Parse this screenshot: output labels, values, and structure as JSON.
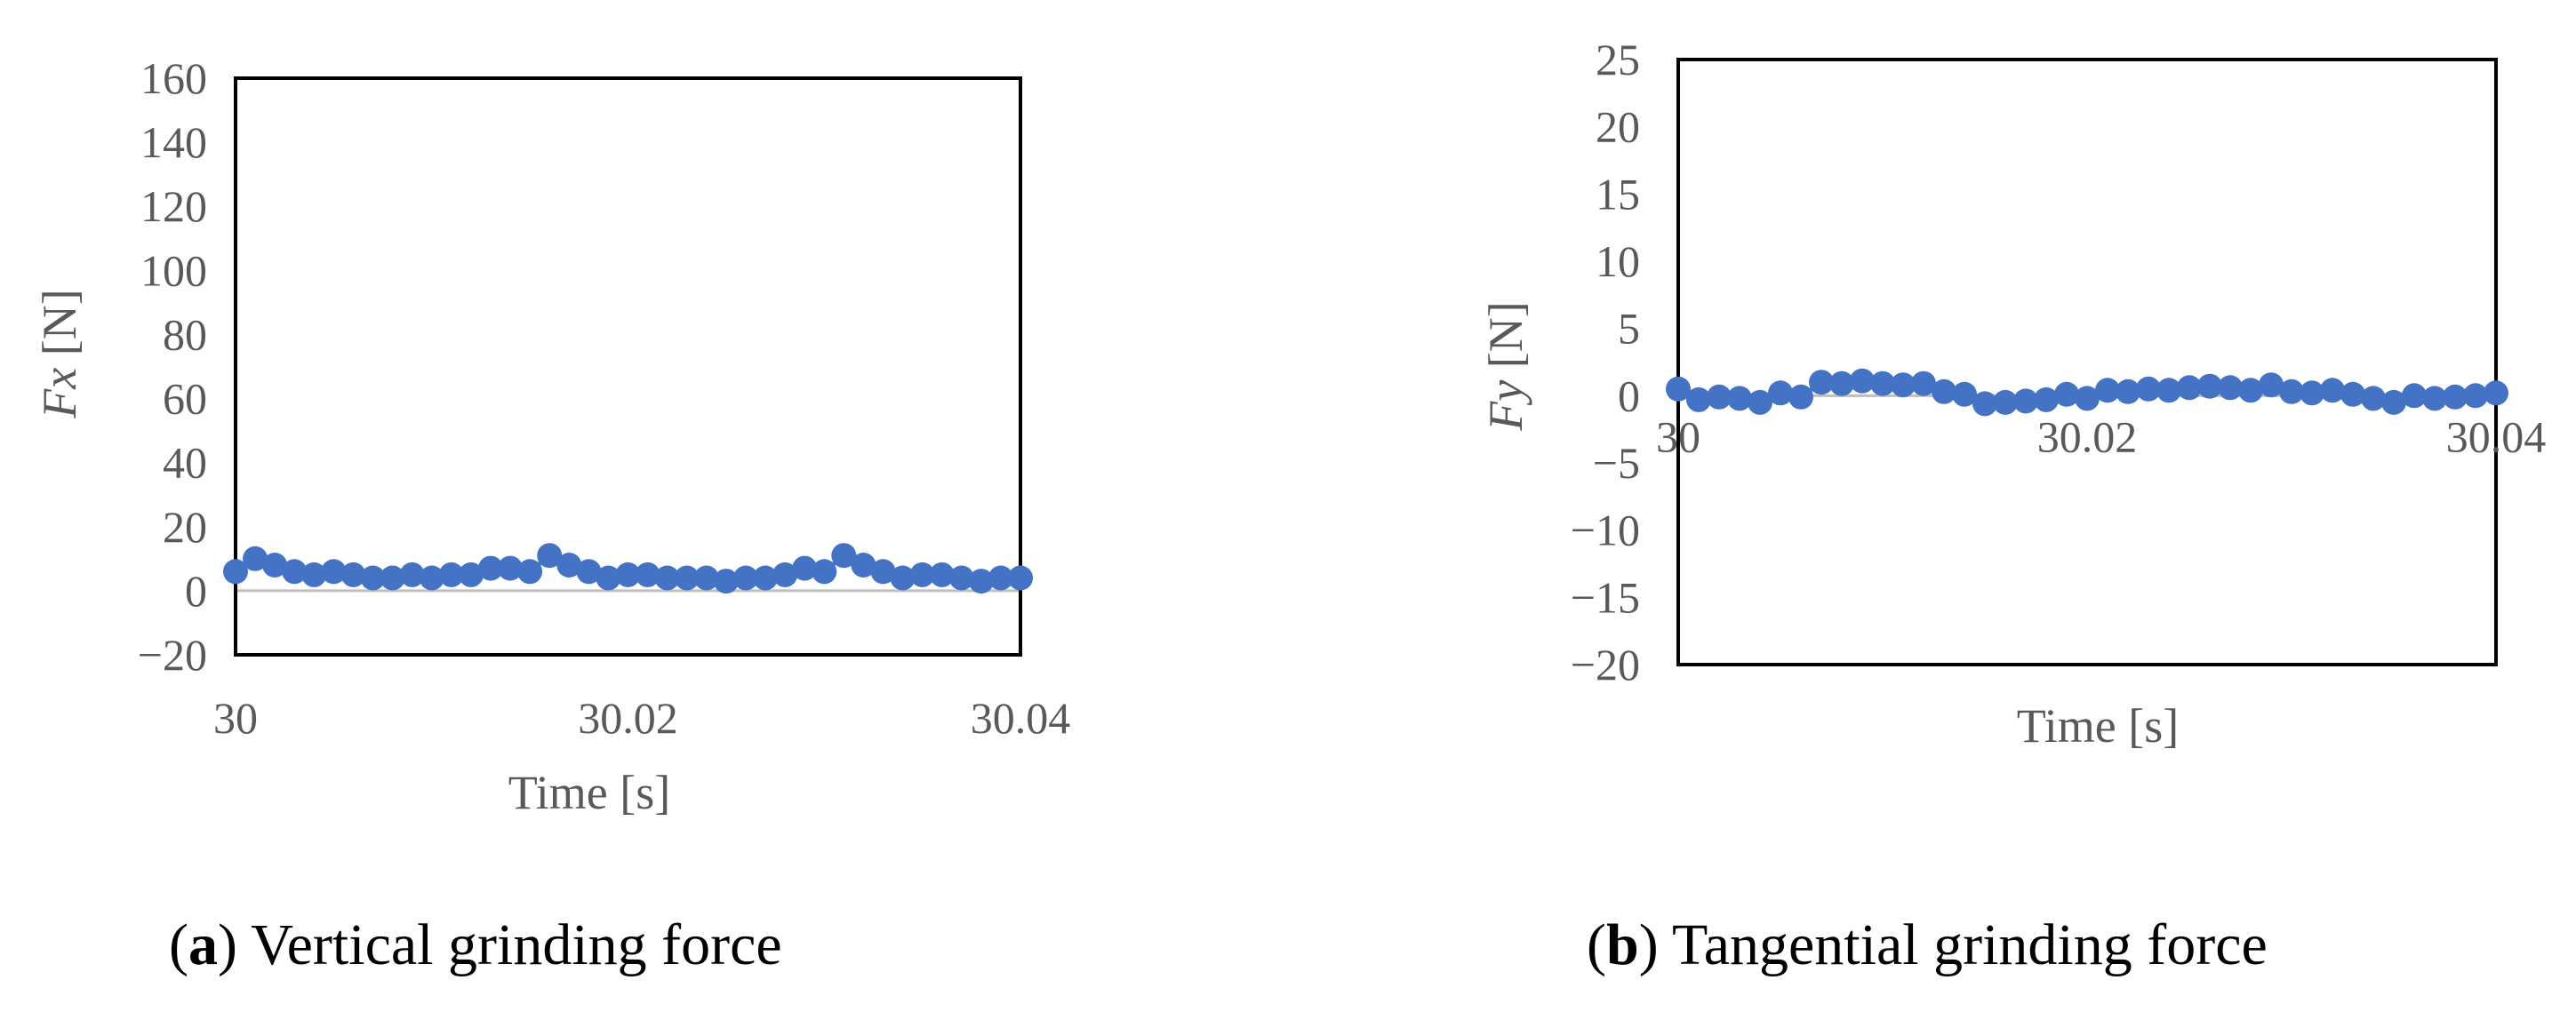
{
  "chart_data": [
    {
      "type": "line",
      "ylabel_var": "Fx",
      "ylabel_unit": " [N]",
      "xlabel": "Time [s]",
      "caption_tag": "a",
      "caption_text": "Vertical grinding force",
      "xlim": [
        30,
        30.04
      ],
      "ylim": [
        -20,
        160
      ],
      "xticks": [
        "30",
        "30.02",
        "30.04"
      ],
      "yticks": [
        "160",
        "140",
        "120",
        "100",
        "80",
        "60",
        "40",
        "20",
        "0",
        "−20"
      ],
      "grid": false,
      "legend": false,
      "series": [
        {
          "color": "#4472c4",
          "x": [
            30.0,
            30.001,
            30.002,
            30.003,
            30.004,
            30.005,
            30.006,
            30.007,
            30.008,
            30.009,
            30.01,
            30.011,
            30.012,
            30.013,
            30.014,
            30.015,
            30.016,
            30.017,
            30.018,
            30.019,
            30.02,
            30.021,
            30.022,
            30.023,
            30.024,
            30.025,
            30.026,
            30.027,
            30.028,
            30.029,
            30.03,
            30.031,
            30.032,
            30.033,
            30.034,
            30.035,
            30.036,
            30.037,
            30.038,
            30.039,
            30.04
          ],
          "values": [
            6,
            10,
            8,
            6,
            5,
            6,
            5,
            4,
            4,
            5,
            4,
            5,
            5,
            7,
            7,
            6,
            11,
            8,
            6,
            4,
            5,
            5,
            4,
            4,
            4,
            3,
            4,
            4,
            5,
            7,
            6,
            11,
            8,
            6,
            4,
            5,
            5,
            4,
            3,
            4,
            4
          ]
        }
      ]
    },
    {
      "type": "line",
      "ylabel_var": "Fy",
      "ylabel_unit": " [N]",
      "xlabel": "Time [s]",
      "caption_tag": "b",
      "caption_text": "Tangential grinding force",
      "xlim": [
        30,
        30.04
      ],
      "ylim": [
        -20,
        25
      ],
      "xticks": [
        "30",
        "30.02",
        "30.04"
      ],
      "yticks": [
        "25",
        "20",
        "15",
        "10",
        "5",
        "0",
        "−5",
        "−10",
        "−15",
        "−20"
      ],
      "grid": false,
      "legend": false,
      "series": [
        {
          "color": "#4472c4",
          "x": [
            30.0,
            30.001,
            30.002,
            30.003,
            30.004,
            30.005,
            30.006,
            30.007,
            30.008,
            30.009,
            30.01,
            30.011,
            30.012,
            30.013,
            30.014,
            30.015,
            30.016,
            30.017,
            30.018,
            30.019,
            30.02,
            30.021,
            30.022,
            30.023,
            30.024,
            30.025,
            30.026,
            30.027,
            30.028,
            30.029,
            30.03,
            30.031,
            30.032,
            30.033,
            30.034,
            30.035,
            30.036,
            30.037,
            30.038,
            30.039,
            30.04
          ],
          "values": [
            0.5,
            -0.3,
            -0.1,
            -0.2,
            -0.5,
            0.2,
            -0.1,
            1.0,
            0.9,
            1.1,
            0.9,
            0.8,
            0.9,
            0.3,
            0.1,
            -0.6,
            -0.5,
            -0.4,
            -0.3,
            0.1,
            -0.2,
            0.4,
            0.3,
            0.5,
            0.4,
            0.6,
            0.7,
            0.6,
            0.4,
            0.8,
            0.3,
            0.2,
            0.4,
            0.1,
            -0.2,
            -0.5,
            0.0,
            -0.2,
            -0.1,
            0.0,
            0.2
          ]
        }
      ]
    }
  ]
}
